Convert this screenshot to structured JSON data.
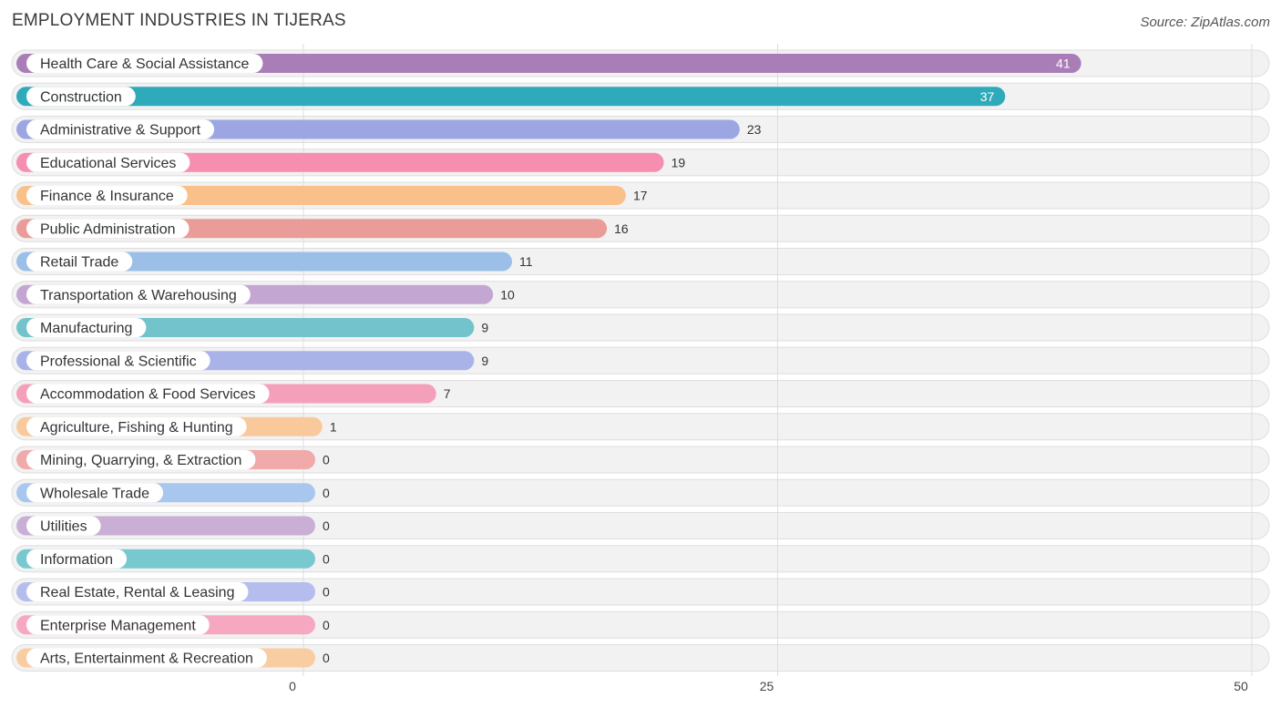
{
  "chart_data": {
    "type": "bar",
    "orientation": "horizontal",
    "title": "EMPLOYMENT INDUSTRIES IN TIJERAS",
    "source": "Source: ZipAtlas.com",
    "xlim": [
      0,
      50
    ],
    "ticks": [
      0,
      25,
      50
    ],
    "categories": [
      "Health Care & Social Assistance",
      "Construction",
      "Administrative & Support",
      "Educational Services",
      "Finance & Insurance",
      "Public Administration",
      "Retail Trade",
      "Transportation & Warehousing",
      "Manufacturing",
      "Professional & Scientific",
      "Accommodation & Food Services",
      "Agriculture, Fishing & Hunting",
      "Mining, Quarrying, & Extraction",
      "Wholesale Trade",
      "Utilities",
      "Information",
      "Real Estate, Rental & Leasing",
      "Enterprise Management",
      "Arts, Entertainment & Recreation"
    ],
    "values": [
      41,
      37,
      23,
      19,
      17,
      16,
      11,
      10,
      9,
      9,
      7,
      1,
      0,
      0,
      0,
      0,
      0,
      0,
      0
    ],
    "colors": [
      "#a97db8",
      "#2faabb",
      "#9ca6e3",
      "#f58eaf",
      "#f9c08a",
      "#ea9c98",
      "#9cbfe8",
      "#c4a6d2",
      "#72c3cb",
      "#aab3e8",
      "#f5a0ba",
      "#f9c99c",
      "#f0aaaa",
      "#a9c7ee",
      "#c9afd6",
      "#78c9cf",
      "#b5bdee",
      "#f7a8c1",
      "#f9cda2"
    ]
  }
}
